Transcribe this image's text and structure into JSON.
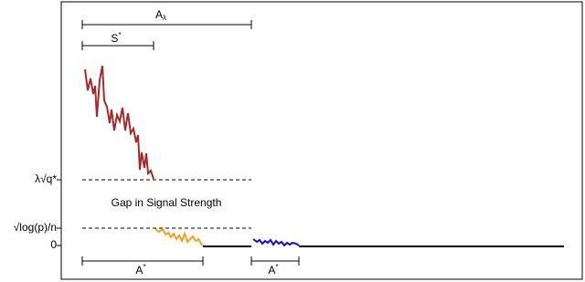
{
  "y_labels": [
    "λ√q*",
    "√log(p)/n",
    "0"
  ],
  "brackets": [
    {
      "base": "A",
      "sub": "λ"
    },
    {
      "base": "S",
      "sup": "*"
    },
    {
      "base": "A",
      "sup": "*"
    },
    {
      "base": "A",
      "sup": "*"
    }
  ],
  "annotation": "Gap in Signal Strength"
}
